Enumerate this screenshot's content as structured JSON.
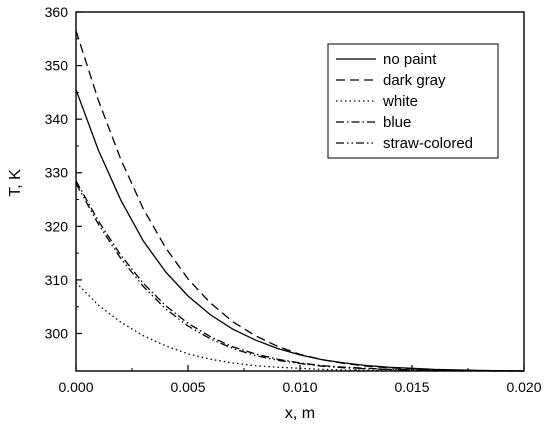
{
  "chart_data": {
    "type": "line",
    "title": "",
    "xlabel": "x, m",
    "ylabel": "T, K",
    "xlim": [
      0,
      0.02
    ],
    "ylim": [
      293,
      360
    ],
    "grid": false,
    "legend_position": "top-right",
    "x_ticks": [
      0.0,
      0.005,
      0.01,
      0.015,
      0.02
    ],
    "x_tick_labels": [
      "0.000",
      "0.005",
      "0.010",
      "0.015",
      "0.020"
    ],
    "y_ticks": [
      300,
      310,
      320,
      330,
      340,
      350,
      360
    ],
    "y_tick_labels": [
      "300",
      "310",
      "320",
      "330",
      "340",
      "350",
      "360"
    ],
    "x": [
      0,
      0.001,
      0.002,
      0.003,
      0.004,
      0.005,
      0.006,
      0.007,
      0.008,
      0.009,
      0.01,
      0.011,
      0.012,
      0.013,
      0.014,
      0.015,
      0.016,
      0.017,
      0.018,
      0.019,
      0.02
    ],
    "series": [
      {
        "name": "no paint",
        "dash": "solid",
        "values": [
          345.5,
          334.2,
          324.9,
          317.3,
          311.5,
          307.0,
          303.5,
          300.8,
          298.8,
          297.2,
          296.0,
          295.1,
          294.5,
          294.0,
          293.7,
          293.5,
          293.3,
          293.2,
          293.1,
          293.05,
          293.0
        ]
      },
      {
        "name": "dark gray",
        "dash": "dashed",
        "values": [
          356.5,
          343.5,
          332.5,
          323.3,
          316.0,
          310.2,
          305.7,
          302.2,
          299.6,
          297.6,
          296.1,
          295.1,
          294.4,
          293.9,
          293.6,
          293.4,
          293.2,
          293.1,
          293.05,
          293.02,
          293.0
        ]
      },
      {
        "name": "white",
        "dash": "dotted",
        "values": [
          309.5,
          305.3,
          302.1,
          299.6,
          297.7,
          296.2,
          295.2,
          294.5,
          294.0,
          293.7,
          293.5,
          293.3,
          293.2,
          293.1,
          293.05,
          293.03,
          293.02,
          293.01,
          293.0,
          293.0,
          293.0
        ]
      },
      {
        "name": "blue",
        "dash": "dashdot",
        "values": [
          328.5,
          321.0,
          314.6,
          309.4,
          305.2,
          301.9,
          299.4,
          297.5,
          296.2,
          295.2,
          294.5,
          294.0,
          293.7,
          293.5,
          293.3,
          293.2,
          293.1,
          293.05,
          293.02,
          293.01,
          293.0
        ]
      },
      {
        "name": "straw-colored",
        "dash": "dashdotdot",
        "values": [
          328.0,
          320.4,
          314.0,
          308.8,
          304.6,
          301.4,
          299.0,
          297.2,
          295.9,
          295.0,
          294.4,
          293.9,
          293.6,
          293.4,
          293.3,
          293.2,
          293.1,
          293.05,
          293.02,
          293.01,
          293.0
        ]
      }
    ]
  }
}
